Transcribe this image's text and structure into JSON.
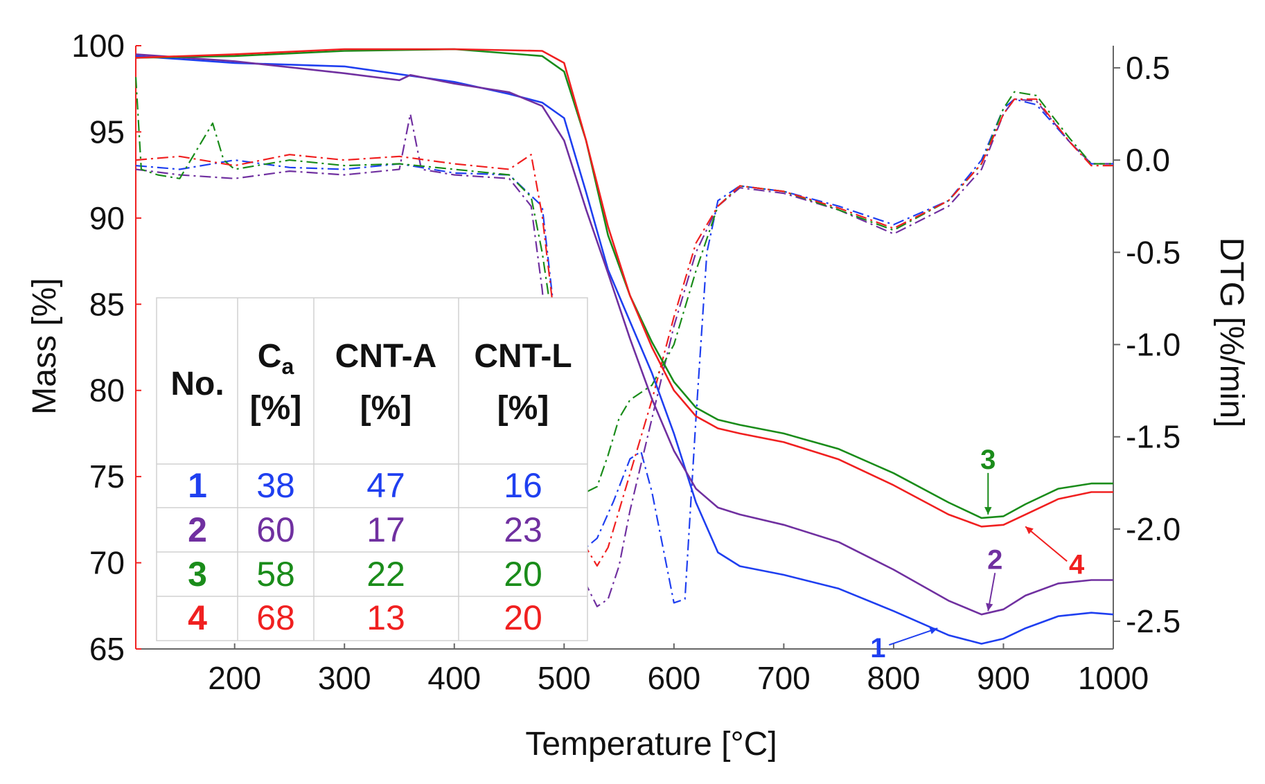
{
  "chart_data": {
    "type": "line",
    "xlabel": "Temperature [°C]",
    "ylabel": "Mass [%]",
    "y2label": "DTG [%/min]",
    "xlim": [
      110,
      1000
    ],
    "ylim": [
      65,
      100
    ],
    "y2lim": [
      -2.65,
      0.62
    ],
    "xticks": [
      "200",
      "300",
      "400",
      "500",
      "600",
      "700",
      "800",
      "900",
      "1000"
    ],
    "yticks": [
      "65",
      "70",
      "75",
      "80",
      "85",
      "90",
      "95",
      "100"
    ],
    "y2ticks": [
      "-2.5",
      "-2.0",
      "-1.5",
      "-1.0",
      "-0.5",
      "0.0",
      "0.5"
    ],
    "colors": {
      "1": "#1f3ff0",
      "2": "#7030a0",
      "3": "#1a8c1a",
      "4": "#f02020"
    },
    "mass_series": [
      {
        "name": "1",
        "x": [
          110,
          200,
          300,
          400,
          450,
          480,
          500,
          520,
          540,
          560,
          580,
          600,
          620,
          640,
          660,
          700,
          750,
          800,
          850,
          880,
          900,
          920,
          950,
          980,
          1000
        ],
        "values": [
          99.4,
          99.0,
          98.8,
          97.9,
          97.2,
          96.7,
          95.8,
          91.5,
          87.0,
          84.0,
          81.0,
          77.5,
          73.5,
          70.6,
          69.8,
          69.3,
          68.5,
          67.2,
          65.8,
          65.3,
          65.6,
          66.2,
          66.9,
          67.1,
          67.0
        ]
      },
      {
        "name": "2",
        "x": [
          110,
          200,
          300,
          350,
          360,
          400,
          450,
          480,
          500,
          520,
          540,
          560,
          580,
          600,
          620,
          640,
          660,
          700,
          750,
          800,
          850,
          880,
          900,
          920,
          950,
          980,
          1000
        ],
        "values": [
          99.5,
          99.1,
          98.4,
          98.0,
          98.3,
          97.8,
          97.3,
          96.5,
          94.5,
          90.5,
          86.8,
          83.0,
          79.5,
          76.5,
          74.3,
          73.2,
          72.8,
          72.2,
          71.2,
          69.6,
          67.8,
          67.0,
          67.3,
          68.1,
          68.8,
          69.0,
          69.0
        ]
      },
      {
        "name": "3",
        "x": [
          110,
          200,
          300,
          400,
          480,
          500,
          520,
          540,
          560,
          580,
          600,
          620,
          640,
          660,
          700,
          750,
          800,
          850,
          880,
          900,
          920,
          950,
          980,
          1000
        ],
        "values": [
          99.3,
          99.4,
          99.7,
          99.8,
          99.4,
          98.5,
          94.5,
          89.0,
          85.5,
          82.8,
          80.5,
          79.0,
          78.3,
          78.0,
          77.5,
          76.6,
          75.2,
          73.5,
          72.6,
          72.7,
          73.4,
          74.3,
          74.6,
          74.6
        ]
      },
      {
        "name": "4",
        "x": [
          110,
          200,
          300,
          400,
          480,
          500,
          520,
          540,
          560,
          580,
          600,
          620,
          640,
          660,
          700,
          750,
          800,
          850,
          880,
          900,
          920,
          950,
          980,
          1000
        ],
        "values": [
          99.3,
          99.5,
          99.8,
          99.8,
          99.7,
          99.0,
          94.5,
          89.5,
          85.5,
          82.5,
          80.0,
          78.5,
          77.8,
          77.5,
          77.0,
          76.0,
          74.5,
          72.8,
          72.1,
          72.2,
          72.8,
          73.7,
          74.1,
          74.1
        ]
      }
    ],
    "dtg_series": [
      {
        "name": "1",
        "x": [
          110,
          150,
          200,
          250,
          300,
          350,
          400,
          450,
          480,
          500,
          510,
          520,
          530,
          545,
          560,
          570,
          580,
          590,
          600,
          610,
          620,
          630,
          640,
          660,
          700,
          750,
          800,
          850,
          880,
          900,
          910,
          930,
          960,
          980,
          1000
        ],
        "values": [
          -0.03,
          -0.05,
          0.0,
          -0.04,
          -0.05,
          -0.02,
          -0.07,
          -0.08,
          -0.25,
          -1.3,
          -1.9,
          -2.1,
          -2.05,
          -1.85,
          -1.62,
          -1.58,
          -1.8,
          -2.1,
          -2.4,
          -2.38,
          -1.4,
          -0.5,
          -0.22,
          -0.14,
          -0.17,
          -0.25,
          -0.35,
          -0.22,
          0.0,
          0.28,
          0.33,
          0.3,
          0.1,
          -0.02,
          -0.02
        ]
      },
      {
        "name": "2",
        "x": [
          110,
          150,
          200,
          250,
          300,
          350,
          360,
          370,
          400,
          450,
          470,
          480,
          490,
          500,
          510,
          520,
          530,
          540,
          550,
          560,
          580,
          600,
          620,
          640,
          660,
          700,
          750,
          800,
          850,
          880,
          900,
          910,
          930,
          960,
          980,
          1000
        ],
        "values": [
          -0.05,
          -0.08,
          -0.1,
          -0.06,
          -0.08,
          -0.05,
          0.25,
          -0.05,
          -0.08,
          -0.1,
          -0.25,
          -0.7,
          -1.3,
          -1.9,
          -2.1,
          -2.3,
          -2.42,
          -2.38,
          -2.2,
          -1.9,
          -1.4,
          -0.9,
          -0.5,
          -0.25,
          -0.15,
          -0.18,
          -0.27,
          -0.4,
          -0.25,
          -0.05,
          0.25,
          0.33,
          0.32,
          0.1,
          -0.02,
          -0.02
        ]
      },
      {
        "name": "3",
        "x": [
          110,
          115,
          130,
          150,
          180,
          190,
          200,
          250,
          300,
          350,
          400,
          450,
          470,
          480,
          490,
          500,
          510,
          520,
          530,
          540,
          550,
          560,
          580,
          600,
          620,
          640,
          660,
          700,
          750,
          800,
          850,
          880,
          900,
          910,
          930,
          960,
          980,
          1000
        ],
        "values": [
          0.45,
          -0.05,
          -0.08,
          -0.1,
          0.2,
          0.0,
          -0.05,
          0.0,
          -0.03,
          -0.02,
          -0.05,
          -0.08,
          -0.2,
          -0.5,
          -0.9,
          -1.3,
          -1.6,
          -1.8,
          -1.77,
          -1.6,
          -1.4,
          -1.3,
          -1.22,
          -1.0,
          -0.6,
          -0.25,
          -0.14,
          -0.17,
          -0.27,
          -0.38,
          -0.22,
          -0.02,
          0.28,
          0.37,
          0.35,
          0.12,
          -0.02,
          -0.02
        ]
      },
      {
        "name": "4",
        "x": [
          110,
          150,
          200,
          250,
          300,
          350,
          400,
          450,
          470,
          480,
          490,
          500,
          510,
          520,
          530,
          540,
          550,
          560,
          580,
          600,
          620,
          640,
          660,
          700,
          750,
          800,
          850,
          880,
          900,
          910,
          930,
          960,
          980,
          1000
        ],
        "values": [
          0.0,
          0.02,
          -0.03,
          0.03,
          0.0,
          0.02,
          -0.02,
          -0.05,
          0.03,
          -0.3,
          -0.8,
          -1.4,
          -1.85,
          -2.1,
          -2.2,
          -2.1,
          -1.9,
          -1.7,
          -1.3,
          -0.85,
          -0.45,
          -0.25,
          -0.14,
          -0.17,
          -0.26,
          -0.37,
          -0.22,
          -0.02,
          0.25,
          0.33,
          0.33,
          0.1,
          -0.03,
          -0.03
        ]
      }
    ],
    "legend_table": {
      "headers": [
        {
          "line1": "No.",
          "line2": ""
        },
        {
          "line1": "C",
          "sub": "a",
          "line2": "[%]"
        },
        {
          "line1": "CNT-A",
          "line2": "[%]"
        },
        {
          "line1": "CNT-L",
          "line2": "[%]"
        }
      ],
      "rows": [
        {
          "no": "1",
          "ca": "38",
          "cnta": "47",
          "cntl": "16"
        },
        {
          "no": "2",
          "ca": "60",
          "cnta": "17",
          "cntl": "23"
        },
        {
          "no": "3",
          "ca": "58",
          "cnta": "22",
          "cntl": "20"
        },
        {
          "no": "4",
          "ca": "68",
          "cnta": "13",
          "cntl": "20"
        }
      ]
    },
    "annotations": [
      {
        "label": "1",
        "series": "1",
        "x": 840,
        "y": 66.2
      },
      {
        "label": "2",
        "series": "2",
        "x": 886,
        "y": 67.2
      },
      {
        "label": "3",
        "series": "3",
        "x": 886,
        "y": 72.8
      },
      {
        "label": "4",
        "series": "4",
        "x": 920,
        "y": 72.1
      }
    ]
  }
}
